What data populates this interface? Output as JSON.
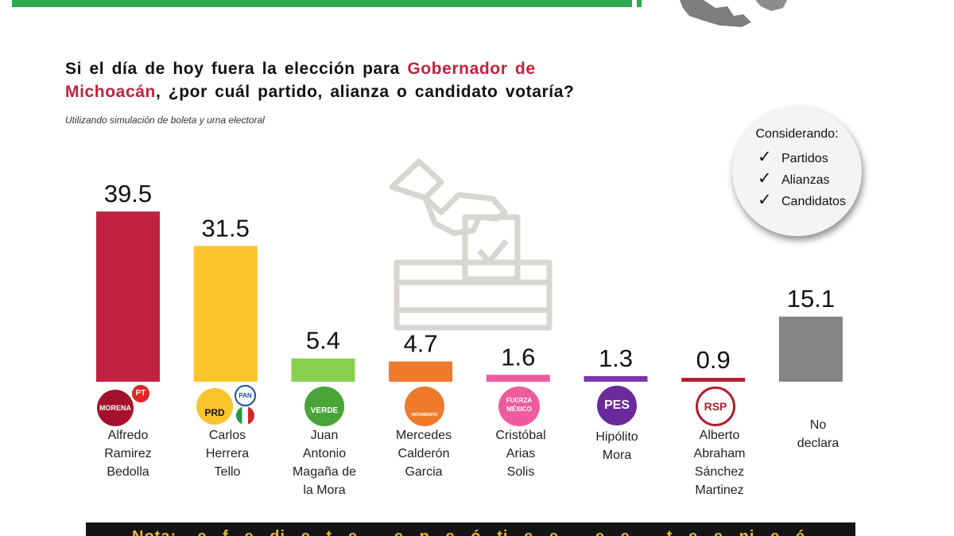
{
  "header": {
    "title_part1": "Si el día de hoy fuera la elección para ",
    "title_highlight1": "Gobernador de",
    "title_highlight2": "Michoacán",
    "title_part2": ", ¿por cuál partido, alianza o candidato votaría?",
    "subtitle": "Utilizando simulación de boleta y urna electoral"
  },
  "considering": {
    "title": "Considerando:",
    "items": [
      "Partidos",
      "Alianzas",
      "Candidatos"
    ],
    "check_glyph": "✓"
  },
  "logos": {
    "morena": "MORENA",
    "pt": "PT",
    "prd": "PRD",
    "pan": "PAN",
    "verde": "VERDE",
    "mc": "MOVIMIENTO CIUDADANO",
    "fm": "FUERZA MÉXICO",
    "pes": "PES",
    "rsp": "RSP"
  },
  "footer": {
    "text": "Nota: ...e...f...e...di...e...t...e... ...e...p...e...ó...ti...e...e... ...e...e... ...t...e...e...ni...e...é"
  },
  "chart_data": {
    "type": "bar",
    "categories": [
      "Alfredo Ramirez Bedolla",
      "Carlos Herrera Tello",
      "Juan Antonio Magaña de la Mora",
      "Mercedes Calderón Garcia",
      "Cristóbal Arias Solis",
      "Hipólito Mora",
      "Alberto Abraham Sánchez Martinez",
      "No declara"
    ],
    "label_lines": [
      [
        "Alfredo",
        "Ramirez",
        "Bedolla"
      ],
      [
        "Carlos",
        "Herrera",
        "Tello"
      ],
      [
        "Juan",
        "Antonio",
        "Magaña de",
        "la Mora"
      ],
      [
        "Mercedes",
        "Calderón",
        "Garcia"
      ],
      [
        "Cristóbal",
        "Arias",
        "Solis"
      ],
      [
        "Hipólito",
        "Mora"
      ],
      [
        "Alberto",
        "Abraham",
        "Sánchez",
        "Martinez"
      ],
      [
        "No",
        "declara"
      ]
    ],
    "values": [
      39.5,
      31.5,
      5.4,
      4.7,
      1.6,
      1.3,
      0.9,
      15.1
    ],
    "value_labels": [
      "39.5",
      "31.5",
      "5.4",
      "4.7",
      "1.6",
      "1.3",
      "0.9",
      "15.1"
    ],
    "colors": [
      "#c0223f",
      "#fbc42d",
      "#8bcf4f",
      "#ee7a2c",
      "#ee5c9f",
      "#7a37ad",
      "#b01f2d",
      "#848484"
    ],
    "ylim": [
      0,
      39.5
    ],
    "title": "Si el día de hoy fuera la elección para Gobernador de Michoacán, ¿por cuál partido, alianza o candidato votaría?",
    "xlabel": "",
    "ylabel": "",
    "grid": false,
    "legend": "none"
  }
}
